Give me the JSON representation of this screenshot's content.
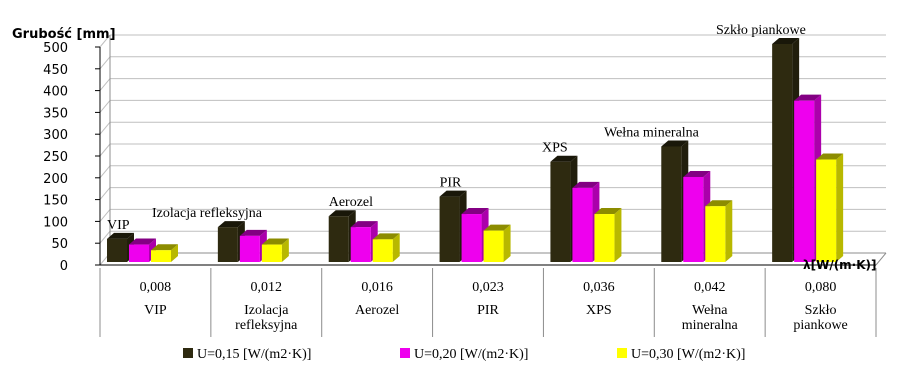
{
  "chart_data": {
    "type": "bar",
    "ylabel": "Grubość [mm]",
    "xunit_label": "λ[W/(m·K)]",
    "ylim": [
      0,
      500
    ],
    "yticks": [
      "0",
      "50",
      "100",
      "150",
      "200",
      "250",
      "300",
      "350",
      "400",
      "450",
      "500"
    ],
    "grid": true,
    "legend_position": "bottom",
    "categories": [
      {
        "lambda": "0,008",
        "name_lines": [
          "VIP"
        ],
        "annotation": "VIP"
      },
      {
        "lambda": "0,012",
        "name_lines": [
          "Izolacja",
          "refleksyjna"
        ],
        "annotation": "Izolacja refleksyjna"
      },
      {
        "lambda": "0,016",
        "name_lines": [
          "Aerozel"
        ],
        "annotation": "Aerozel"
      },
      {
        "lambda": "0,023",
        "name_lines": [
          "PIR"
        ],
        "annotation": "PIR"
      },
      {
        "lambda": "0,036",
        "name_lines": [
          "XPS"
        ],
        "annotation": "XPS"
      },
      {
        "lambda": "0,042",
        "name_lines": [
          "Wełna",
          "mineralna"
        ],
        "annotation": "Wełna mineralna"
      },
      {
        "lambda": "0,080",
        "name_lines": [
          "Szkło",
          "piankowe"
        ],
        "annotation": "Szkło piankowe"
      }
    ],
    "series": [
      {
        "name": "U=0,15 [W/(m2·K)]",
        "color": "#2e2a10",
        "values": [
          53,
          80,
          105,
          150,
          230,
          265,
          500
        ]
      },
      {
        "name": "U=0,20 [W/(m2·K)]",
        "color": "#ee00ee",
        "values": [
          40,
          60,
          80,
          110,
          170,
          195,
          370
        ]
      },
      {
        "name": "U=0,30 [W/(m2·K)]",
        "color": "#ffff00",
        "values": [
          27,
          40,
          52,
          72,
          110,
          128,
          235
        ]
      }
    ]
  }
}
